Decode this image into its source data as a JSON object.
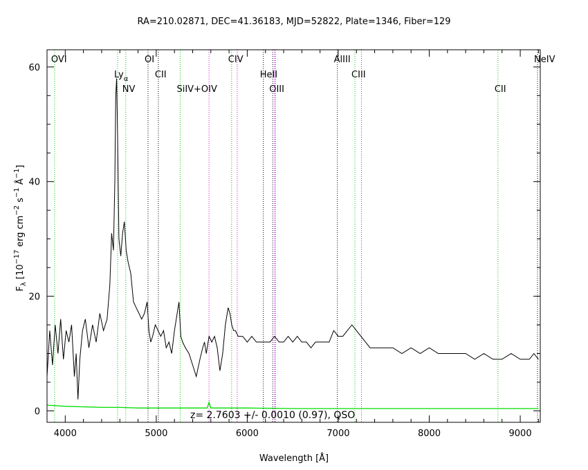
{
  "chart_data": {
    "type": "line",
    "title": "RA=210.02871, DEC=41.36183, MJD=52822, Plate=1346, Fiber=129",
    "xlabel": "Wavelength [Å]",
    "ylabel_parts": {
      "f": "F",
      "lambda": "λ",
      "open": " [10",
      "exp1": "−17",
      "erg": " erg cm",
      "exp2": "−2",
      "s": " s",
      "exp3": "−1",
      "ang": " Å",
      "exp4": "−1",
      "close": "]"
    },
    "xlim": [
      3800,
      9220
    ],
    "ylim": [
      -2,
      63
    ],
    "xticks": [
      4000,
      5000,
      6000,
      7000,
      8000,
      9000
    ],
    "yticks": [
      0,
      20,
      40,
      60
    ],
    "annotation": "z= 2.7603 +/- 0.0010 (0.97), QSO",
    "colors": {
      "spectrum": "#000000",
      "error": "#00dd00",
      "green_line": "#00cc00",
      "black_line": "#000000",
      "magenta_line": "#dd00dd"
    },
    "emission_lines": [
      {
        "name": "OVI",
        "x": 3883,
        "color": "green",
        "row": 1
      },
      {
        "name": "Ly",
        "sub": "α",
        "x": 4575,
        "color": "green",
        "row": 2
      },
      {
        "name": "NV",
        "x": 4665,
        "color": "green",
        "row": 3
      },
      {
        "name": "OI",
        "x": 4910,
        "color": "black",
        "row": 1
      },
      {
        "name": "CII",
        "x": 5023,
        "color": "black",
        "row": 2
      },
      {
        "name": "SiIV+OIV",
        "x": 5263,
        "color": "green",
        "row": 3
      },
      {
        "name": "",
        "x": 5580,
        "color": "magenta",
        "row": 0
      },
      {
        "name": "CIV",
        "x": 5828,
        "color": "green",
        "row": 1
      },
      {
        "name": "",
        "x": 5890,
        "color": "magenta",
        "row": 0
      },
      {
        "name": "HeII",
        "x": 6177,
        "color": "black",
        "row": 2
      },
      {
        "name": "OIII",
        "x": 6280,
        "color": "black",
        "row": 3
      },
      {
        "name": "",
        "x": 6300,
        "color": "magenta",
        "row": 0
      },
      {
        "name": "",
        "x": 6310,
        "color": "blue",
        "row": 0
      },
      {
        "name": "AlIII",
        "x": 6990,
        "color": "black",
        "row": 1
      },
      {
        "name": "CIII",
        "x": 7183,
        "color": "green",
        "row": 2
      },
      {
        "name": "",
        "x": 7255,
        "color": "magenta",
        "row": 0
      },
      {
        "name": "CII",
        "x": 8755,
        "color": "green",
        "row": 3
      },
      {
        "name": "NeIV",
        "x": 9190,
        "color": "black",
        "row": 1
      }
    ],
    "spectrum": {
      "x": [
        3800,
        3830,
        3860,
        3890,
        3920,
        3950,
        3980,
        4010,
        4040,
        4070,
        4100,
        4120,
        4140,
        4160,
        4190,
        4220,
        4260,
        4300,
        4340,
        4380,
        4420,
        4460,
        4490,
        4510,
        4530,
        4545,
        4555,
        4565,
        4575,
        4590,
        4610,
        4630,
        4650,
        4670,
        4690,
        4720,
        4750,
        4780,
        4810,
        4840,
        4870,
        4900,
        4920,
        4940,
        4960,
        4990,
        5020,
        5050,
        5080,
        5110,
        5140,
        5170,
        5200,
        5230,
        5250,
        5270,
        5290,
        5320,
        5360,
        5400,
        5440,
        5480,
        5510,
        5530,
        5550,
        5580,
        5610,
        5640,
        5670,
        5700,
        5730,
        5760,
        5790,
        5810,
        5830,
        5850,
        5870,
        5900,
        5950,
        6000,
        6050,
        6100,
        6150,
        6200,
        6250,
        6300,
        6350,
        6400,
        6450,
        6500,
        6550,
        6600,
        6650,
        6700,
        6750,
        6800,
        6850,
        6900,
        6950,
        7000,
        7050,
        7100,
        7150,
        7200,
        7250,
        7300,
        7350,
        7400,
        7450,
        7500,
        7600,
        7700,
        7800,
        7900,
        8000,
        8100,
        8200,
        8300,
        8400,
        8500,
        8600,
        8700,
        8800,
        8900,
        9000,
        9050,
        9100,
        9150,
        9200
      ],
      "y": [
        6,
        14,
        8,
        15,
        10,
        16,
        9,
        14,
        12,
        15,
        6,
        10,
        2,
        9,
        14,
        16,
        11,
        15,
        12,
        17,
        14,
        16,
        22,
        31,
        28,
        40,
        55,
        58,
        48,
        30,
        27,
        31,
        33,
        28,
        26,
        24,
        19,
        18,
        17,
        16,
        17,
        19,
        14,
        12,
        13,
        15,
        14,
        13,
        14,
        11,
        12,
        10,
        14,
        17,
        19,
        13,
        12,
        11,
        10,
        8,
        6,
        9,
        11,
        12,
        10,
        13,
        12,
        13,
        11,
        7,
        10,
        15,
        18,
        17,
        15,
        14,
        14,
        13,
        13,
        12,
        13,
        12,
        12,
        12,
        12,
        13,
        12,
        12,
        13,
        12,
        13,
        12,
        12,
        11,
        12,
        12,
        12,
        12,
        14,
        13,
        13,
        14,
        15,
        14,
        13,
        12,
        11,
        11,
        11,
        11,
        11,
        10,
        11,
        10,
        11,
        10,
        10,
        10,
        10,
        9,
        10,
        9,
        9,
        10,
        9,
        9,
        9,
        10,
        9
      ]
    },
    "error_curve": {
      "x": [
        3800,
        4000,
        4200,
        4400,
        4600,
        4800,
        5000,
        5200,
        5400,
        5560,
        5580,
        5600,
        5800,
        6000,
        6500,
        7000,
        7500,
        8000,
        8500,
        9000,
        9200
      ],
      "y": [
        1.0,
        0.8,
        0.7,
        0.6,
        0.6,
        0.5,
        0.5,
        0.5,
        0.5,
        0.5,
        1.5,
        0.5,
        0.5,
        0.5,
        0.4,
        0.4,
        0.4,
        0.4,
        0.4,
        0.4,
        0.4
      ]
    }
  }
}
